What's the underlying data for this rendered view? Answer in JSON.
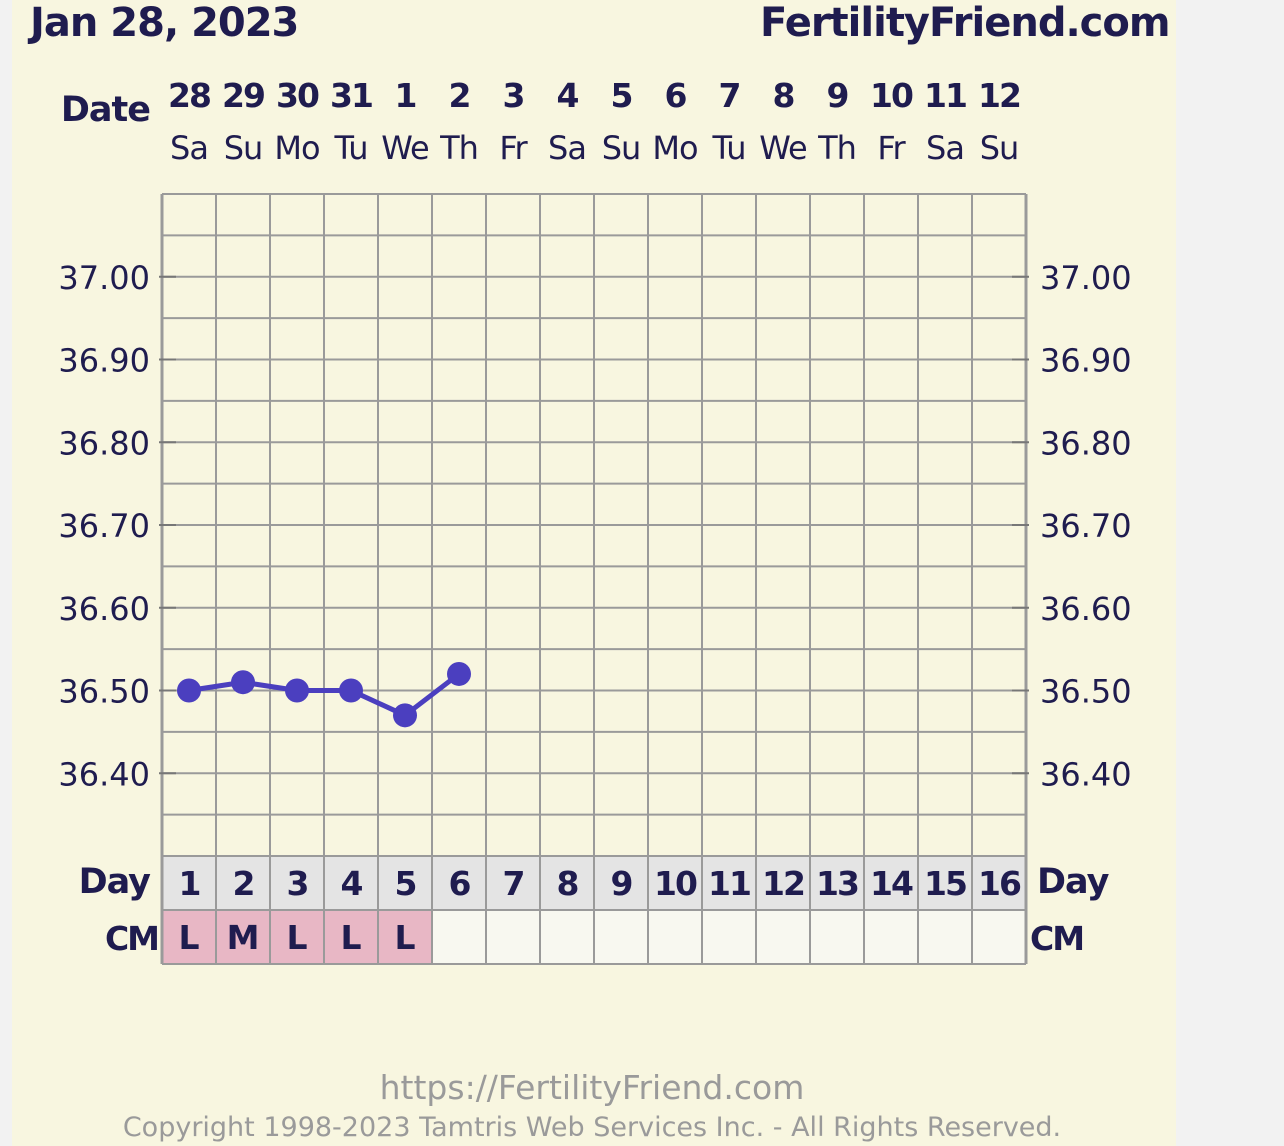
{
  "header": {
    "date": "Jan 28, 2023",
    "site": "FertilityFriend.com"
  },
  "labels": {
    "date_row": "Date",
    "day_row": "Day",
    "cm_row": "CM"
  },
  "footer": {
    "url": "https://FertilityFriend.com",
    "copyright": "Copyright 1998-2023 Tamtris Web Services Inc. - All Rights Reserved."
  },
  "colors": {
    "line": "#4b3fbf",
    "grid": "#9a9a9a",
    "text": "#1f1c4f",
    "cm_filled": "#e8b7c5",
    "day_bg": "#e4e4e4"
  },
  "chart_data": {
    "type": "line",
    "title": "",
    "xlabel": "Day",
    "ylabel": "",
    "ylim": [
      36.3,
      37.1
    ],
    "y_ticks": [
      "37.00",
      "36.90",
      "36.80",
      "36.70",
      "36.60",
      "36.50",
      "36.40"
    ],
    "y_tick_values": [
      37.0,
      36.9,
      36.8,
      36.7,
      36.6,
      36.5,
      36.4
    ],
    "grid": true,
    "dates": [
      "28",
      "29",
      "30",
      "31",
      "1",
      "2",
      "3",
      "4",
      "5",
      "6",
      "7",
      "8",
      "9",
      "10",
      "11",
      "12"
    ],
    "weekdays": [
      "Sa",
      "Su",
      "Mo",
      "Tu",
      "We",
      "Th",
      "Fr",
      "Sa",
      "Su",
      "Mo",
      "Tu",
      "We",
      "Th",
      "Fr",
      "Sa",
      "Su"
    ],
    "days": [
      "1",
      "2",
      "3",
      "4",
      "5",
      "6",
      "7",
      "8",
      "9",
      "10",
      "11",
      "12",
      "13",
      "14",
      "15",
      "16"
    ],
    "cm": [
      "L",
      "M",
      "L",
      "L",
      "L",
      "",
      "",
      "",
      "",
      "",
      "",
      "",
      "",
      "",
      "",
      ""
    ],
    "series": [
      {
        "x": [
          1,
          2,
          3,
          4,
          5,
          6
        ],
        "values": [
          36.5,
          36.51,
          36.5,
          36.5,
          36.47,
          36.52
        ]
      }
    ]
  }
}
